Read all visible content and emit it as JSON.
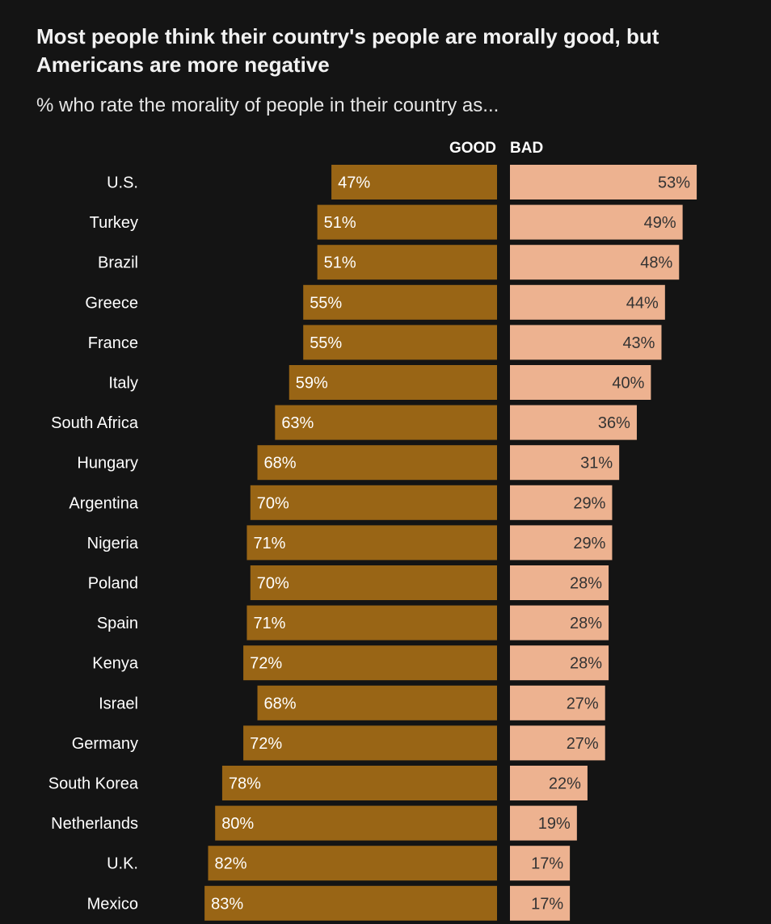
{
  "chart_data": {
    "type": "bar",
    "title": "Most people think their country's people are morally good, but Americans are more negative",
    "subtitle": "% who rate the morality of people in their country as...",
    "column_headers": {
      "good": "GOOD",
      "bad": "BAD"
    },
    "categories": [
      "U.S.",
      "Turkey",
      "Brazil",
      "Greece",
      "France",
      "Italy",
      "South Africa",
      "Hungary",
      "Argentina",
      "Nigeria",
      "Poland",
      "Spain",
      "Kenya",
      "Israel",
      "Germany",
      "South Korea",
      "Netherlands",
      "U.K.",
      "Mexico"
    ],
    "series": [
      {
        "name": "GOOD",
        "values": [
          47,
          51,
          51,
          55,
          55,
          59,
          63,
          68,
          70,
          71,
          70,
          71,
          72,
          68,
          72,
          78,
          80,
          82,
          83
        ]
      },
      {
        "name": "BAD",
        "values": [
          53,
          49,
          48,
          44,
          43,
          40,
          36,
          31,
          29,
          29,
          28,
          28,
          28,
          27,
          27,
          22,
          19,
          17,
          17
        ]
      }
    ],
    "value_suffix": "%",
    "colors": {
      "good": "#996515",
      "bad": "#edb290",
      "background": "#141414"
    }
  }
}
